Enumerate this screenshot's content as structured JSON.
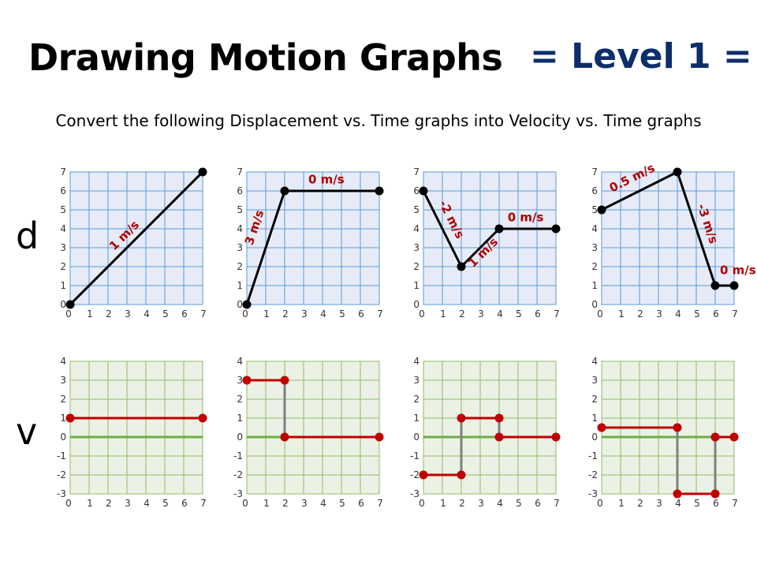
{
  "header": {
    "title": "Drawing Motion Graphs",
    "level": "= Level 1 =",
    "subtitle": "Convert the following Displacement vs. Time graphs into Velocity vs. Time graphs"
  },
  "row_labels": {
    "displacement": "d",
    "velocity": "v"
  },
  "colors": {
    "d_grid_bg": "#e6ebf7",
    "d_grid_line": "#5b9bd5",
    "v_grid_bg": "#ebf1e4",
    "v_grid_line": "#8fbc6a",
    "v_zero_line": "#70ad47",
    "d_line": "#000000",
    "v_line": "#c00000",
    "v_connector": "#808080",
    "slope_label": "#b00000"
  },
  "chart_data": [
    {
      "type": "line",
      "kind": "displacement",
      "xlim": [
        0,
        7
      ],
      "ylim": [
        0,
        7
      ],
      "x_ticks": [
        "0",
        "1",
        "2",
        "3",
        "4",
        "5",
        "6",
        "7"
      ],
      "y_ticks": [
        "0",
        "1",
        "2",
        "3",
        "4",
        "5",
        "6",
        "7"
      ],
      "points": [
        [
          0,
          0
        ],
        [
          7,
          7
        ]
      ],
      "annotations": [
        {
          "text": "1 m/s",
          "x": 3,
          "y": 3.5
        }
      ]
    },
    {
      "type": "line",
      "kind": "displacement",
      "xlim": [
        0,
        7
      ],
      "ylim": [
        0,
        7
      ],
      "x_ticks": [
        "0",
        "1",
        "2",
        "3",
        "4",
        "5",
        "6",
        "7"
      ],
      "y_ticks": [
        "0",
        "1",
        "2",
        "3",
        "4",
        "5",
        "6",
        "7"
      ],
      "points": [
        [
          0,
          0
        ],
        [
          2,
          6
        ],
        [
          7,
          6
        ]
      ],
      "annotations": [
        {
          "text": "3 m/s",
          "x": 0.6,
          "y": 4
        },
        {
          "text": "0 m/s",
          "x": 4.2,
          "y": 6.4
        }
      ]
    },
    {
      "type": "line",
      "kind": "displacement",
      "xlim": [
        0,
        7
      ],
      "ylim": [
        0,
        7
      ],
      "x_ticks": [
        "0",
        "1",
        "2",
        "3",
        "4",
        "5",
        "6",
        "7"
      ],
      "y_ticks": [
        "0",
        "1",
        "2",
        "3",
        "4",
        "5",
        "6",
        "7"
      ],
      "points": [
        [
          0,
          6
        ],
        [
          2,
          2
        ],
        [
          4,
          4
        ],
        [
          7,
          4
        ]
      ],
      "annotations": [
        {
          "text": "-2 m/s",
          "x": 1.3,
          "y": 4.4
        },
        {
          "text": "1 m/s",
          "x": 3.3,
          "y": 2.6
        },
        {
          "text": "0 m/s",
          "x": 5.4,
          "y": 4.4
        }
      ]
    },
    {
      "type": "line",
      "kind": "displacement",
      "xlim": [
        0,
        7
      ],
      "ylim": [
        0,
        7
      ],
      "x_ticks": [
        "0",
        "1",
        "2",
        "3",
        "4",
        "5",
        "6",
        "7"
      ],
      "y_ticks": [
        "0",
        "1",
        "2",
        "3",
        "4",
        "5",
        "6",
        "7"
      ],
      "points": [
        [
          0,
          5
        ],
        [
          4,
          7
        ],
        [
          6,
          1
        ],
        [
          7,
          1
        ]
      ],
      "annotations": [
        {
          "text": "0.5 m/s",
          "x": 1.7,
          "y": 6.5
        },
        {
          "text": "-3 m/s",
          "x": 5.4,
          "y": 4.2
        },
        {
          "text": "0 m/s",
          "x": 7.2,
          "y": 1.6
        }
      ]
    },
    {
      "type": "line",
      "kind": "velocity",
      "xlim": [
        0,
        7
      ],
      "ylim": [
        -3,
        4
      ],
      "x_ticks": [
        "0",
        "1",
        "2",
        "3",
        "4",
        "5",
        "6",
        "7"
      ],
      "y_ticks": [
        "-3",
        "-2",
        "-1",
        "0",
        "1",
        "2",
        "3",
        "4"
      ],
      "segments": [
        [
          [
            0,
            1
          ],
          [
            7,
            1
          ]
        ]
      ],
      "connectors": []
    },
    {
      "type": "line",
      "kind": "velocity",
      "xlim": [
        0,
        7
      ],
      "ylim": [
        -3,
        4
      ],
      "x_ticks": [
        "0",
        "1",
        "2",
        "3",
        "4",
        "5",
        "6",
        "7"
      ],
      "y_ticks": [
        "-3",
        "-2",
        "-1",
        "0",
        "1",
        "2",
        "3",
        "4"
      ],
      "segments": [
        [
          [
            0,
            3
          ],
          [
            2,
            3
          ]
        ],
        [
          [
            2,
            0
          ],
          [
            7,
            0
          ]
        ]
      ],
      "connectors": [
        [
          [
            2,
            3
          ],
          [
            2,
            0
          ]
        ]
      ]
    },
    {
      "type": "line",
      "kind": "velocity",
      "xlim": [
        0,
        7
      ],
      "ylim": [
        -3,
        4
      ],
      "x_ticks": [
        "0",
        "1",
        "2",
        "3",
        "4",
        "5",
        "6",
        "7"
      ],
      "y_ticks": [
        "-3",
        "-2",
        "-1",
        "0",
        "1",
        "2",
        "3",
        "4"
      ],
      "segments": [
        [
          [
            0,
            -2
          ],
          [
            2,
            -2
          ]
        ],
        [
          [
            2,
            1
          ],
          [
            4,
            1
          ]
        ],
        [
          [
            4,
            0
          ],
          [
            7,
            0
          ]
        ]
      ],
      "connectors": [
        [
          [
            2,
            -2
          ],
          [
            2,
            1
          ]
        ],
        [
          [
            4,
            1
          ],
          [
            4,
            0
          ]
        ]
      ]
    },
    {
      "type": "line",
      "kind": "velocity",
      "xlim": [
        0,
        7
      ],
      "ylim": [
        -3,
        4
      ],
      "x_ticks": [
        "0",
        "1",
        "2",
        "3",
        "4",
        "5",
        "6",
        "7"
      ],
      "y_ticks": [
        "-3",
        "-2",
        "-1",
        "0",
        "1",
        "2",
        "3",
        "4"
      ],
      "segments": [
        [
          [
            0,
            0.5
          ],
          [
            4,
            0.5
          ]
        ],
        [
          [
            4,
            -3
          ],
          [
            6,
            -3
          ]
        ],
        [
          [
            6,
            0
          ],
          [
            7,
            0
          ]
        ]
      ],
      "connectors": [
        [
          [
            4,
            0.5
          ],
          [
            4,
            -3
          ]
        ],
        [
          [
            6,
            -3
          ],
          [
            6,
            0
          ]
        ]
      ]
    }
  ]
}
